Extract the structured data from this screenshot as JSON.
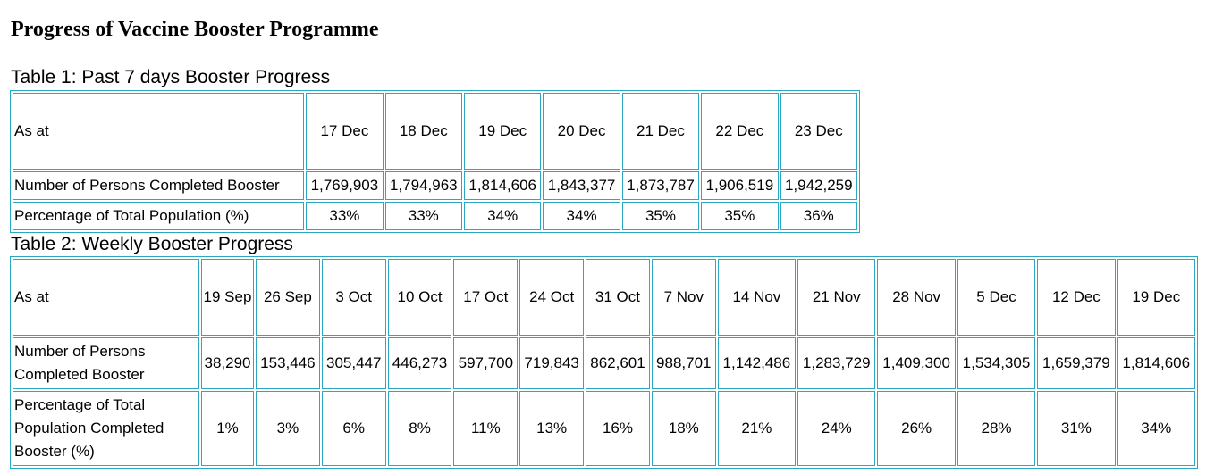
{
  "page": {
    "title": "Progress of Vaccine Booster Programme"
  },
  "table1": {
    "caption": "Table 1: Past 7 days Booster Progress",
    "row_labels": [
      "As at",
      "Number of Persons Completed Booster",
      "Percentage of Total Population (%)"
    ],
    "dates": [
      "17 Dec",
      "18 Dec",
      "19 Dec",
      "20 Dec",
      "21 Dec",
      "22 Dec",
      "23 Dec"
    ],
    "persons": [
      "1,769,903",
      "1,794,963",
      "1,814,606",
      "1,843,377",
      "1,873,787",
      "1,906,519",
      "1,942,259"
    ],
    "percent": [
      "33%",
      "33%",
      "34%",
      "34%",
      "35%",
      "35%",
      "36%"
    ]
  },
  "table2": {
    "caption": "Table 2: Weekly Booster Progress",
    "row_labels": [
      "As at",
      "Number of Persons Completed Booster",
      "Percentage of Total Population Completed Booster (%)"
    ],
    "dates": [
      "19 Sep",
      "26 Sep",
      "3 Oct",
      "10 Oct",
      "17 Oct",
      "24 Oct",
      "31 Oct",
      "7 Nov",
      "14 Nov",
      "21 Nov",
      "28 Nov",
      "5 Dec",
      "12 Dec",
      "19 Dec"
    ],
    "persons": [
      "38,290",
      "153,446",
      "305,447",
      "446,273",
      "597,700",
      "719,843",
      "862,601",
      "988,701",
      "1,142,486",
      "1,283,729",
      "1,409,300",
      "1,534,305",
      "1,659,379",
      "1,814,606"
    ],
    "percent": [
      "1%",
      "3%",
      "6%",
      "8%",
      "11%",
      "13%",
      "16%",
      "18%",
      "21%",
      "24%",
      "26%",
      "28%",
      "31%",
      "34%"
    ]
  }
}
